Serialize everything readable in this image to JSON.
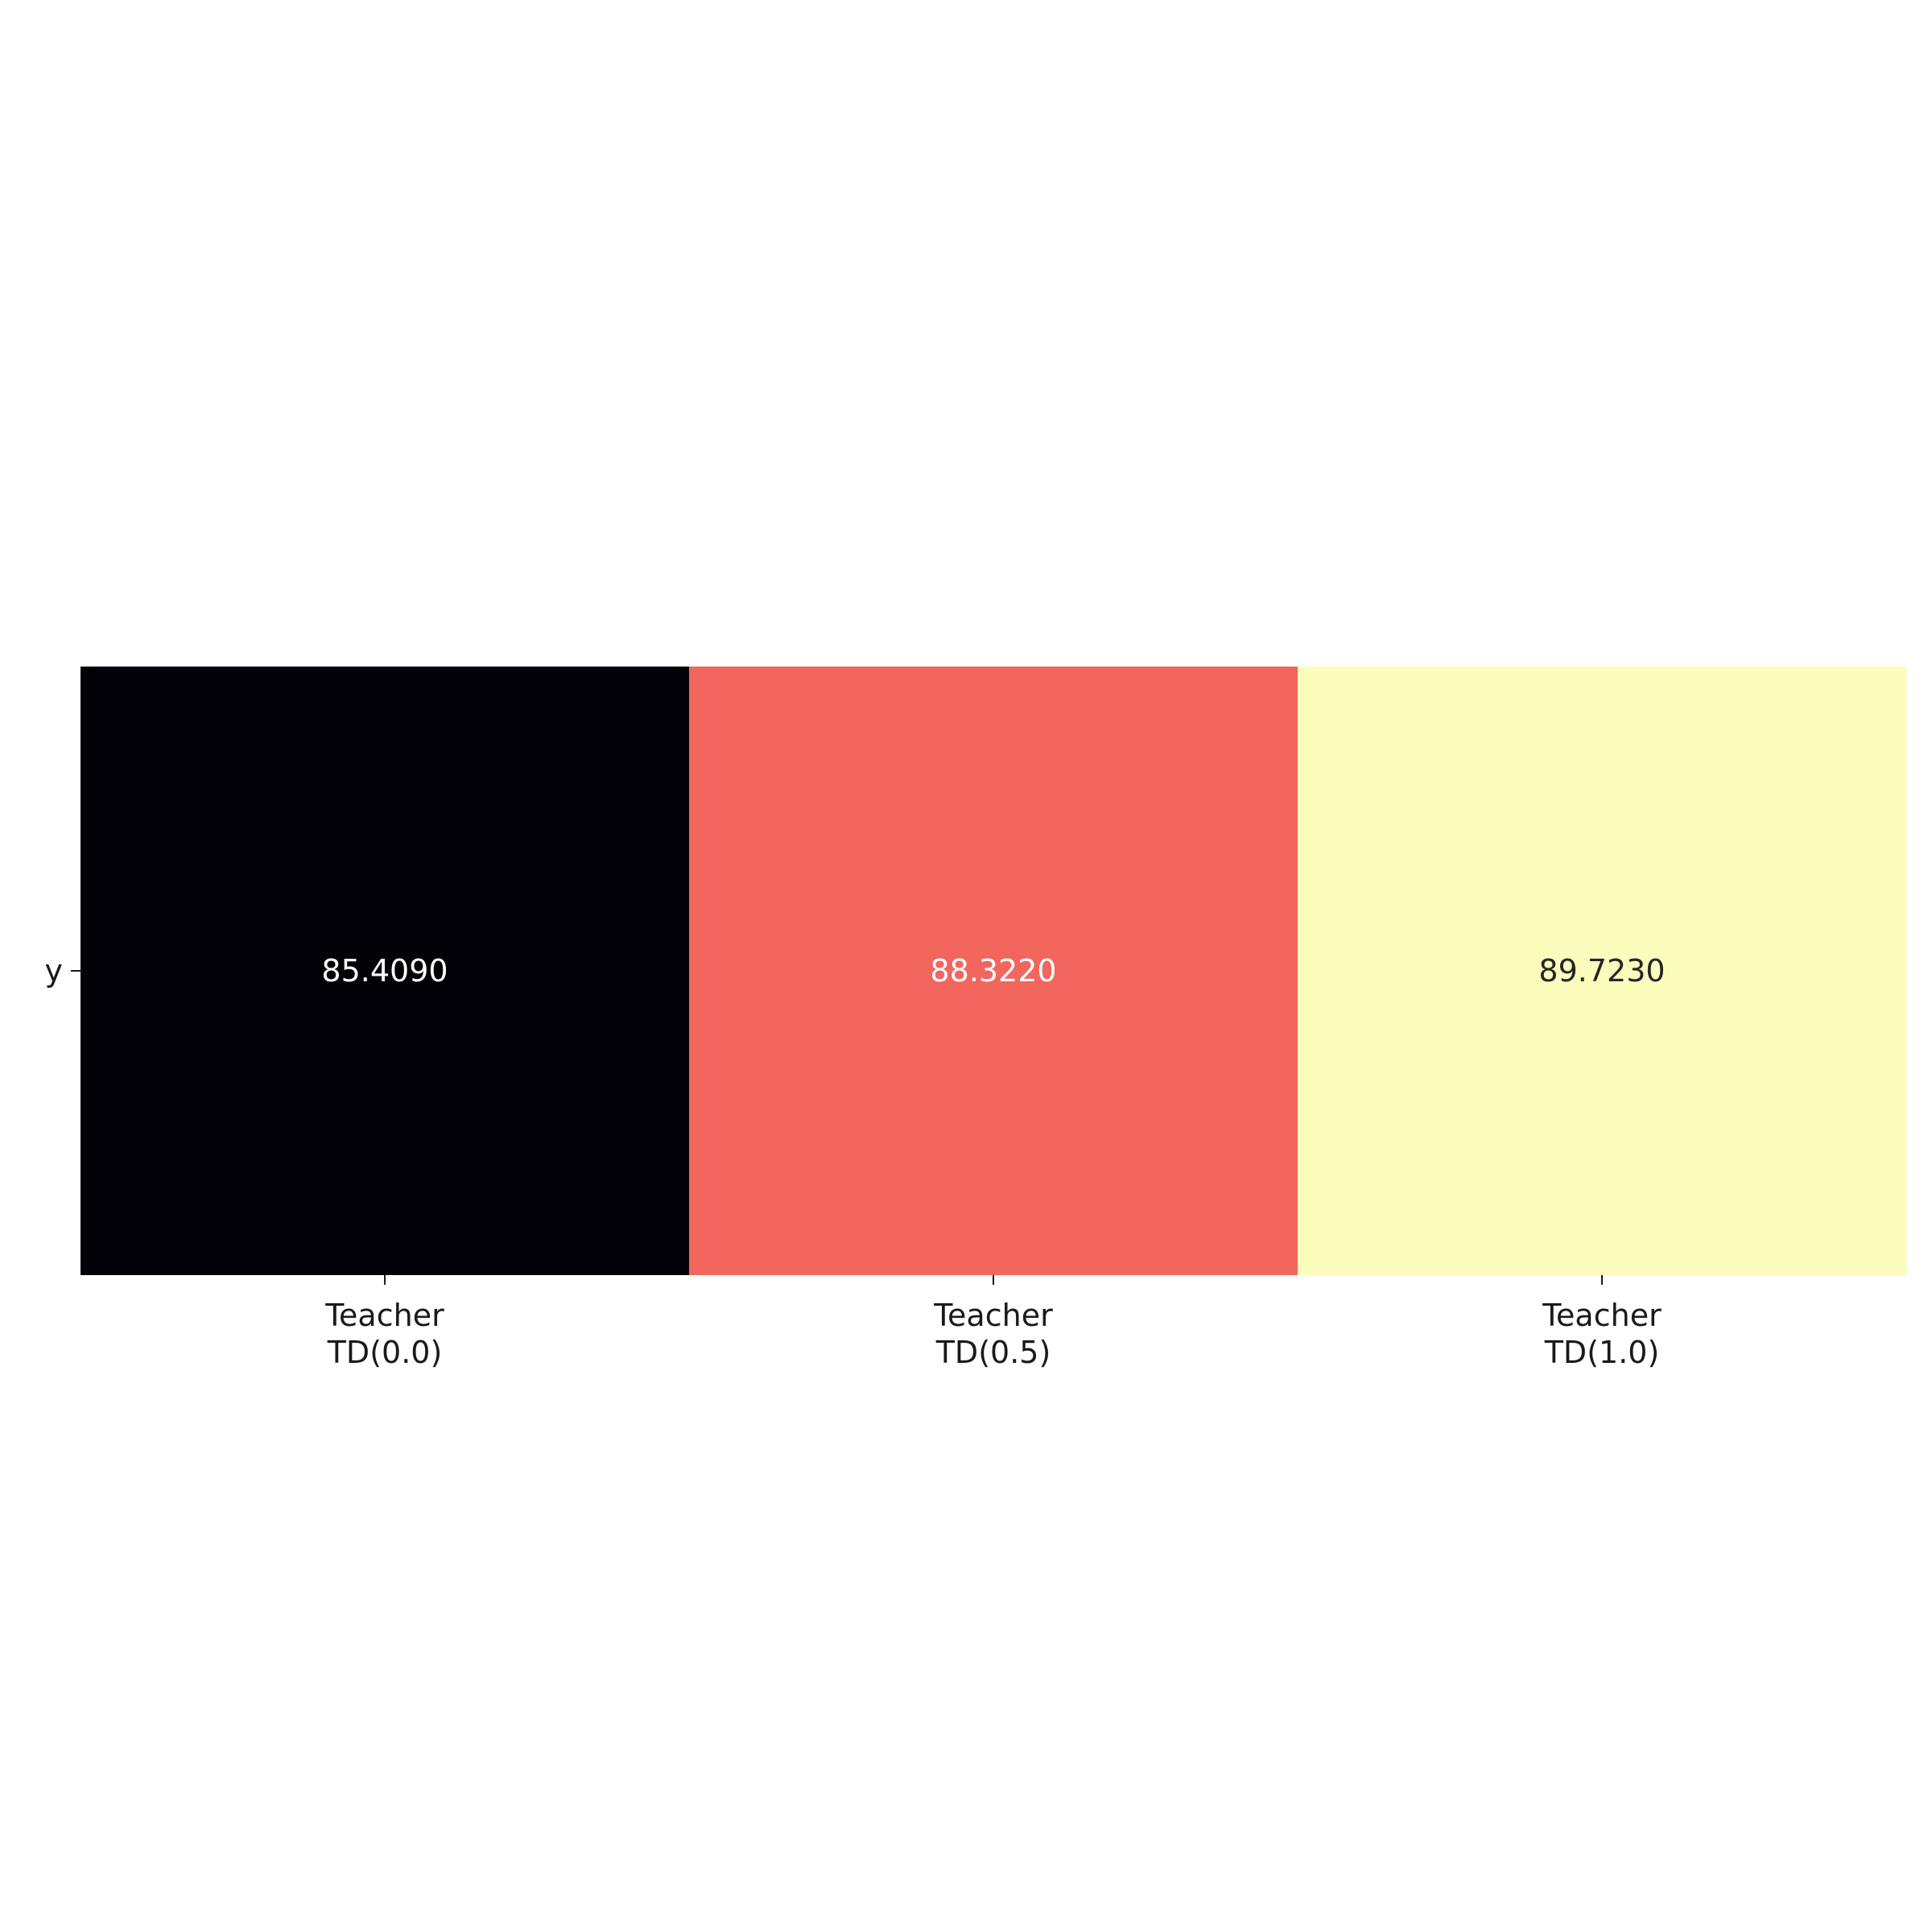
{
  "chart_data": {
    "type": "heatmap",
    "colormap": "magma",
    "rows": [
      "y"
    ],
    "columns": [
      [
        "Teacher",
        "TD(0.0)"
      ],
      [
        "Teacher",
        "TD(0.5)"
      ],
      [
        "Teacher",
        "TD(1.0)"
      ]
    ],
    "values": [
      [
        85.409,
        88.322,
        89.723
      ]
    ],
    "annotations": [
      [
        "85.4090",
        "88.3220",
        "89.7230"
      ]
    ],
    "cell_colors": [
      [
        "#020206",
        "#f2665d",
        "#fcfcbd"
      ]
    ],
    "annotation_colors": [
      [
        "#ffffff",
        "#ffffff",
        "#262626"
      ]
    ],
    "value_range": [
      85.409,
      89.723
    ],
    "colorbar": false,
    "grid": false
  }
}
